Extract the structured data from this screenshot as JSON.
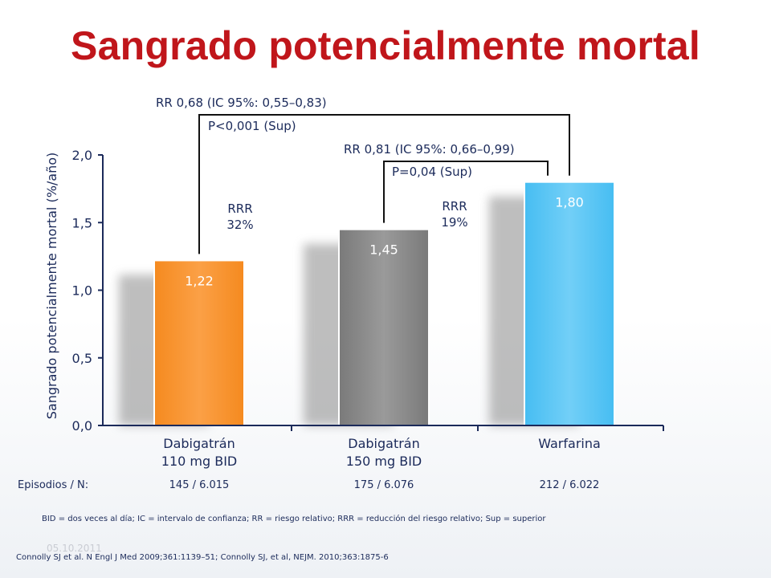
{
  "slide": {
    "title": "Sangrado potencialmente mortal",
    "episodes_label": "Episodios / N:",
    "episodes": [
      "145 / 6.015",
      "175 / 6.076",
      "212 / 6.022"
    ],
    "footnote": "BID = dos veces al día; IC = intervalo de confianza; RR = riesgo relativo; RRR = reducción del riesgo relativo; Sup = superior",
    "reference": "Connolly SJ et al. N Engl J Med 2009;361:1139–51; Connolly SJ, et al, NEJM. 2010;363:1875-6",
    "date": "05.10.2011"
  },
  "chart_data": {
    "type": "bar",
    "title": "Sangrado potencialmente mortal",
    "ylabel": "Sangrado potencialmente mortal (%/año)",
    "xlabel": "",
    "ylim": [
      0,
      2.0
    ],
    "yticks": [
      0,
      0.5,
      1.0,
      1.5,
      2.0
    ],
    "ytick_labels": [
      "0,0",
      "0,5",
      "1,0",
      "1,5",
      "2,0"
    ],
    "categories": [
      [
        "Dabigatrán",
        "110 mg BID"
      ],
      [
        "Dabigatrán",
        "150 mg BID"
      ],
      [
        "Warfarina"
      ]
    ],
    "values": [
      1.22,
      1.45,
      1.8
    ],
    "value_labels": [
      "1,22",
      "1,45",
      "1,80"
    ],
    "colors": [
      "#f7972f",
      "#8c8c8c",
      "#5ec6f5"
    ],
    "grid": false,
    "comparisons": [
      {
        "from": 0,
        "to": 2,
        "rr_text": "RR 0,68 (IC 95%: 0,55–0,83)",
        "p_text": "P<0,001 (Sup)",
        "rrr_lines": [
          "RRR",
          "32%"
        ]
      },
      {
        "from": 1,
        "to": 2,
        "rr_text": "RR 0,81 (IC 95%: 0,66–0,99)",
        "p_text": "P=0,04 (Sup)",
        "rrr_lines": [
          "RRR",
          "19%"
        ]
      }
    ]
  }
}
